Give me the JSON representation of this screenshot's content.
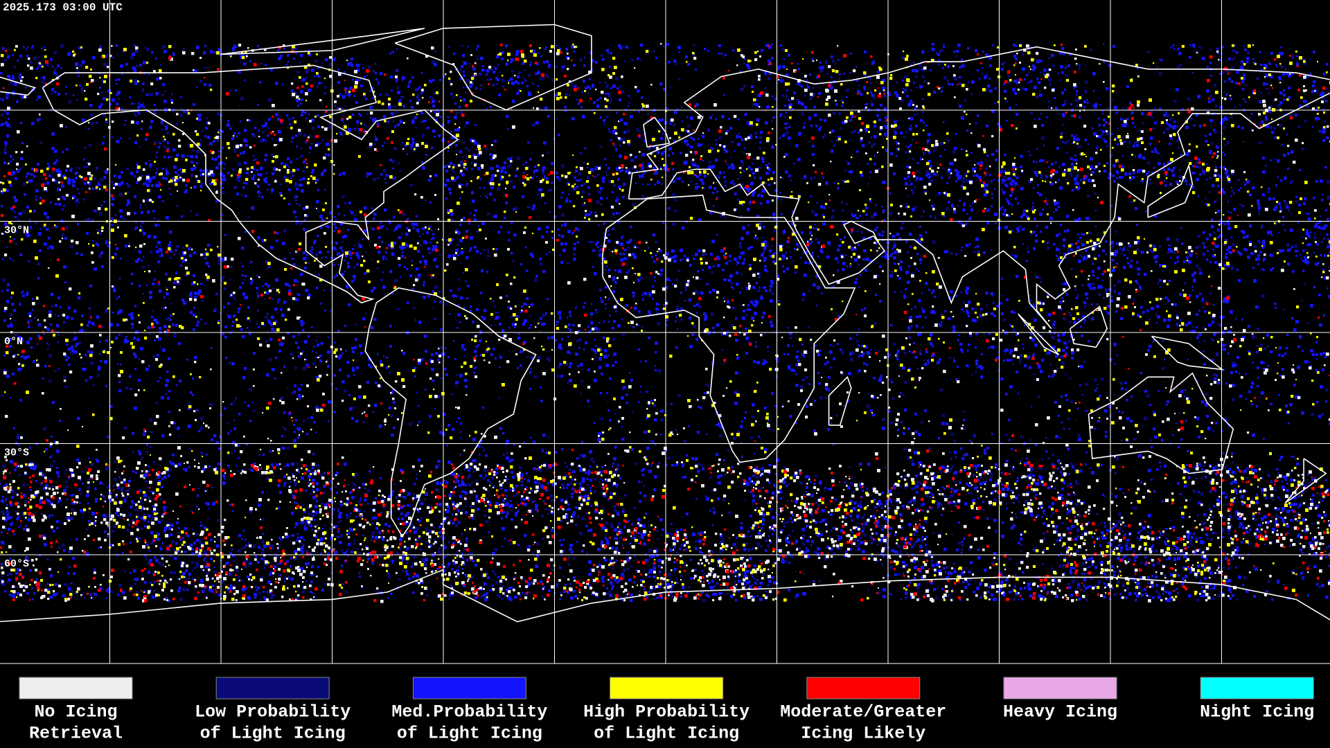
{
  "timestamp": "2025.173 03:00 UTC",
  "latitude_labels": [
    "30°N",
    "0°N",
    "30°S",
    "60°S"
  ],
  "legend": [
    {
      "label": [
        "No Icing",
        "Retrieval"
      ],
      "color": "#eeeeee"
    },
    {
      "label": [
        "Low Probability",
        "of Light Icing"
      ],
      "color": "#0a0a78"
    },
    {
      "label": [
        "Med.Probability",
        "of Light Icing"
      ],
      "color": "#1414ff"
    },
    {
      "label": [
        "High Probability",
        "of Light Icing"
      ],
      "color": "#ffff00"
    },
    {
      "label": [
        "Moderate/Greater",
        "Icing Likely"
      ],
      "color": "#ff0000"
    },
    {
      "label": [
        "Heavy Icing",
        ""
      ],
      "color": "#e8a8e8"
    },
    {
      "label": [
        "Night Icing",
        ""
      ],
      "color": "#00ffff"
    }
  ]
}
